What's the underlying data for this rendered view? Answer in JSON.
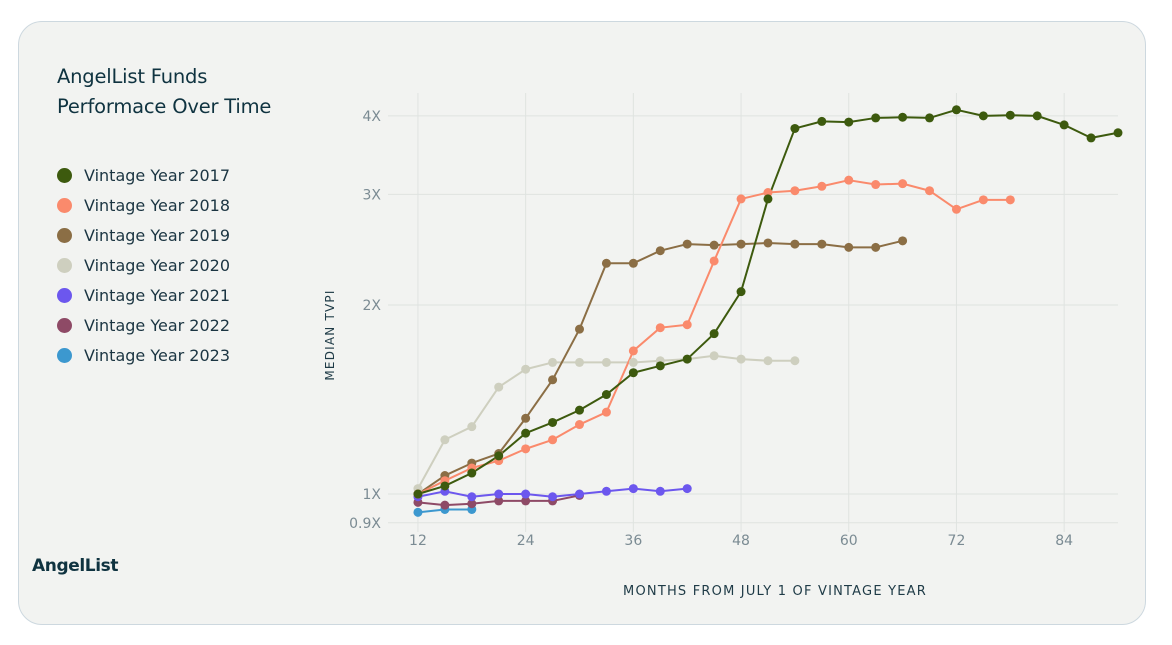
{
  "card": {
    "title_line1": "AngelList Funds",
    "title_line2": "Performace Over Time",
    "brand": "AngelList"
  },
  "chart_data": {
    "type": "line",
    "title": "AngelList Funds Performace Over Time",
    "xlabel": "MONTHS FROM JULY 1 OF VINTAGE YEAR",
    "ylabel": "MEDIAN TVPI",
    "x_ticks": [
      12,
      24,
      36,
      48,
      60,
      72,
      84
    ],
    "xlim": [
      10,
      90
    ],
    "y_ticks": [
      0.9,
      1,
      2,
      3,
      4
    ],
    "y_tick_labels": [
      "0.9X",
      "1X",
      "2X",
      "3X",
      "4X"
    ],
    "y_scale": "log",
    "ylim": [
      0.87,
      4.35
    ],
    "grid": true,
    "legend_position": "left",
    "series": [
      {
        "name": "Vintage Year 2017",
        "color": "#3d5a0e",
        "x": [
          12,
          15,
          18,
          21,
          24,
          27,
          30,
          33,
          36,
          39,
          42,
          45,
          48,
          51,
          54,
          57,
          60,
          63,
          66,
          69,
          72,
          75,
          78,
          81,
          84,
          87,
          90
        ],
        "y": [
          1.0,
          1.03,
          1.08,
          1.15,
          1.25,
          1.3,
          1.36,
          1.44,
          1.56,
          1.6,
          1.64,
          1.8,
          2.1,
          2.95,
          3.82,
          3.92,
          3.91,
          3.97,
          3.98,
          3.97,
          4.09,
          4.0,
          4.01,
          4.0,
          3.87,
          3.69,
          3.76
        ]
      },
      {
        "name": "Vintage Year 2018",
        "color": "#fa8a6c",
        "x": [
          12,
          15,
          18,
          21,
          24,
          27,
          30,
          33,
          36,
          39,
          42,
          45,
          48,
          51,
          54,
          57,
          60,
          63,
          66,
          69,
          72,
          75,
          78
        ],
        "y": [
          1.0,
          1.05,
          1.1,
          1.13,
          1.18,
          1.22,
          1.29,
          1.35,
          1.69,
          1.84,
          1.86,
          2.35,
          2.95,
          3.02,
          3.04,
          3.09,
          3.16,
          3.11,
          3.12,
          3.04,
          2.84,
          2.94,
          2.94
        ]
      },
      {
        "name": "Vintage Year 2019",
        "color": "#8b6e45",
        "x": [
          12,
          15,
          18,
          21,
          24,
          27,
          30,
          33,
          36,
          39,
          42,
          45,
          48,
          51,
          54,
          57,
          60,
          63,
          66
        ],
        "y": [
          1.0,
          1.07,
          1.12,
          1.16,
          1.32,
          1.52,
          1.83,
          2.33,
          2.33,
          2.44,
          2.5,
          2.49,
          2.5,
          2.51,
          2.5,
          2.5,
          2.47,
          2.47,
          2.53
        ]
      },
      {
        "name": "Vintage Year 2020",
        "color": "#cecfbf",
        "x": [
          12,
          15,
          18,
          21,
          24,
          27,
          30,
          33,
          36,
          39,
          42,
          45,
          48,
          51,
          54
        ],
        "y": [
          1.02,
          1.22,
          1.28,
          1.48,
          1.58,
          1.62,
          1.62,
          1.62,
          1.62,
          1.63,
          1.64,
          1.66,
          1.64,
          1.63,
          1.63
        ]
      },
      {
        "name": "Vintage Year 2021",
        "color": "#6c57ee",
        "x": [
          12,
          15,
          18,
          21,
          24,
          27,
          30,
          33,
          36,
          39,
          42
        ],
        "y": [
          0.99,
          1.01,
          0.99,
          1.0,
          1.0,
          0.99,
          1.0,
          1.01,
          1.02,
          1.01,
          1.02
        ]
      },
      {
        "name": "Vintage Year 2022",
        "color": "#8e4a66",
        "x": [
          12,
          15,
          18,
          21,
          24,
          27,
          30
        ],
        "y": [
          0.97,
          0.96,
          0.965,
          0.975,
          0.975,
          0.975,
          0.995
        ]
      },
      {
        "name": "Vintage Year 2023",
        "color": "#3c98cf",
        "x": [
          12,
          15,
          18
        ],
        "y": [
          0.935,
          0.945,
          0.945
        ]
      }
    ]
  }
}
